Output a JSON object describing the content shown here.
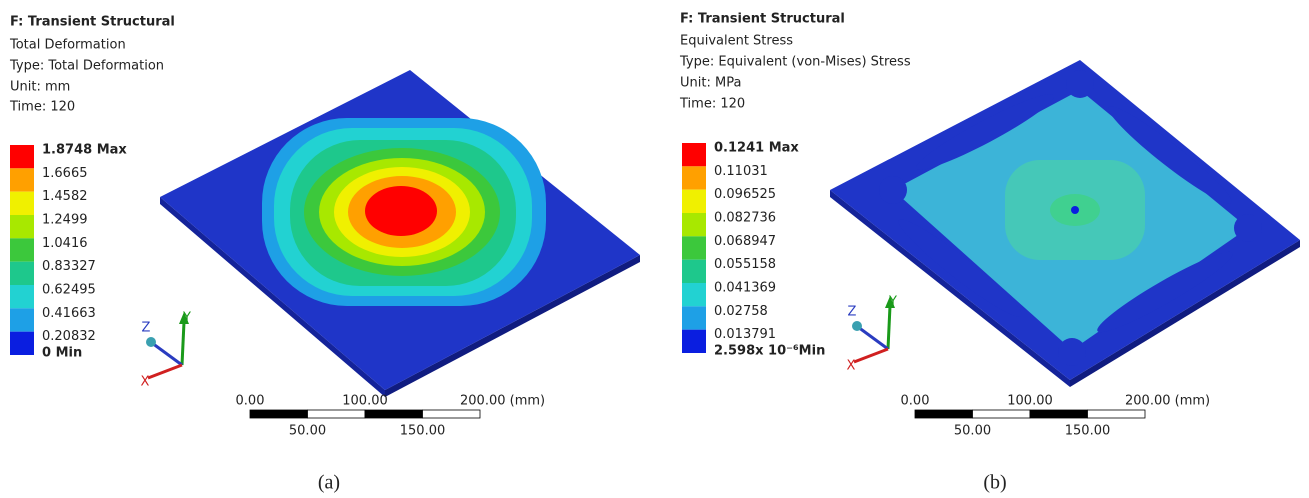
{
  "panels": [
    {
      "analysis": "F: Transient Structural",
      "result": "Total Deformation",
      "type": "Type: Total Deformation",
      "unit": "Unit: mm",
      "time": "Time: 120",
      "legend": {
        "labels": [
          "1.8748 Max",
          "1.6665",
          "1.4582",
          "1.2499",
          "1.0416",
          "0.83327",
          "0.62495",
          "0.41663",
          "0.20832",
          "0 Min"
        ],
        "colors": [
          "#ff0000",
          "#ffa000",
          "#f0f000",
          "#a8e800",
          "#3cc83c",
          "#1ec88c",
          "#22d2d2",
          "#1ea0e6",
          "#0a1ee0"
        ]
      },
      "scale_bar": {
        "top_labels": [
          "0.00",
          "100.00",
          "200.00 (mm)"
        ],
        "bottom_labels": [
          "50.00",
          "150.00"
        ]
      },
      "triad": [
        "Z",
        "Y",
        "X"
      ],
      "caption": "(a)"
    },
    {
      "analysis": "F: Transient Structural",
      "result": "Equivalent Stress",
      "type": "Type: Equivalent (von-Mises) Stress",
      "unit": "Unit: MPa",
      "time": "Time: 120",
      "legend": {
        "labels": [
          "0.1241 Max",
          "0.11031",
          "0.096525",
          "0.082736",
          "0.068947",
          "0.055158",
          "0.041369",
          "0.02758",
          "0.013791",
          "2.598x 10⁻⁶Min"
        ],
        "colors": [
          "#ff0000",
          "#ffa000",
          "#f0f000",
          "#a8e800",
          "#3cc83c",
          "#1ec88c",
          "#22d2d2",
          "#1ea0e6",
          "#0a1ee0"
        ]
      },
      "scale_bar": {
        "top_labels": [
          "0.00",
          "100.00",
          "200.00 (mm)"
        ],
        "bottom_labels": [
          "50.00",
          "150.00"
        ]
      },
      "triad": [
        "Z",
        "Y",
        "X"
      ],
      "caption": "(b)"
    }
  ]
}
